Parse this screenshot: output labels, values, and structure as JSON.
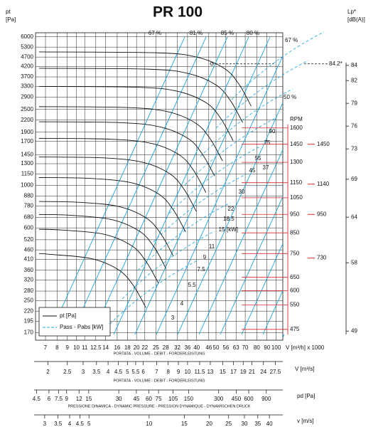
{
  "chart_data": {
    "type": "fan-curve",
    "title": "PR 100",
    "y_label": [
      "pt",
      "[Pa]"
    ],
    "log_x": true,
    "log_y": true,
    "grid": true,
    "ylim": [
      155,
      6300
    ],
    "yticks": [
      6000,
      5300,
      4700,
      4200,
      3700,
      3300,
      2900,
      2500,
      2200,
      1900,
      1700,
      1450,
      1300,
      1150,
      1000,
      880,
      780,
      680,
      600,
      520,
      460,
      410,
      360,
      320,
      280,
      250,
      220,
      195,
      170
    ],
    "xlim": [
      6.24,
      108
    ],
    "xticks": [
      7,
      8,
      9,
      10,
      11,
      12.5,
      14,
      16,
      18,
      20,
      22,
      25,
      28,
      32,
      36,
      40,
      46,
      50,
      56,
      63,
      70,
      80,
      90,
      100
    ],
    "x_unit": "V [m³/h] x 1000",
    "x_caption": "PORTATA - VOLUME - DEBIT - FORDERLEISTUNG",
    "flow_m3s": {
      "lim": [
        1.733,
        30
      ],
      "ticks": [
        2,
        2.5,
        3,
        3.5,
        4,
        4.5,
        5,
        5.5,
        6,
        7,
        8,
        9,
        10,
        11.5,
        13,
        15,
        17,
        19,
        21,
        24,
        27.5
      ],
      "label": "V [m³/s]",
      "caption": "PORTATA - VOLUME - DEBIT - FORDERLEISTUNG"
    },
    "pd": {
      "lim": [
        4.4,
        1317
      ],
      "ticks": [
        4.5,
        6,
        7.5,
        9,
        12,
        15,
        30,
        45,
        60,
        75,
        105,
        150,
        300,
        450,
        600,
        900
      ],
      "label": "pd [Pa]",
      "caption": "PRESSIONE DINAMICA - DYNAMIC PRESSURE - PRESSION DYNAMIQUE - DYNAMISCHEN DRUCK"
    },
    "velocity": {
      "lim": [
        2.7,
        46.7
      ],
      "ticks": [
        3,
        3.5,
        4,
        4.5,
        5,
        10,
        15,
        20,
        25,
        30,
        35,
        40
      ],
      "label": "v [m/s]"
    },
    "rpm": {
      "label": "RPM",
      "lim": [
        445,
        2840
      ],
      "ticks": [
        1600,
        1450,
        1300,
        1150,
        1050,
        950,
        850,
        750,
        650,
        600,
        550,
        475
      ],
      "markers": [
        1450,
        1140,
        950,
        730
      ],
      "color": "#d8262c"
    },
    "lp": {
      "label": [
        "Lp*",
        "[dB(A)]"
      ],
      "lim": [
        47.8,
        88.3
      ],
      "ticks": [
        84,
        82,
        79,
        76,
        73,
        69,
        64,
        58,
        49
      ],
      "point": {
        "value": 84.2,
        "label": "84.2*"
      }
    },
    "efficiency_labels": [
      "67 %",
      "81 %",
      "85 %",
      "80 %",
      "67 %",
      "50 %"
    ],
    "power_labels": [
      3,
      4,
      5.5,
      7.5,
      9,
      11,
      15,
      18.5,
      22,
      30,
      37,
      45,
      55,
      75,
      90
    ],
    "power_unit": "[kW]",
    "legend": [
      {
        "name": "pt [Pa]",
        "style": "solid"
      },
      {
        "name": "Pass - Pabs [kW]",
        "style": "dashed"
      }
    ],
    "curve_color": "#111111",
    "line_color": "#1ba5dc",
    "series": [
      {
        "x": [
          6.5,
          25,
          40,
          55,
          65,
          75
        ],
        "values": [
          5000,
          4950,
          4700,
          4100,
          3400,
          2600
        ]
      },
      {
        "x": [
          6.5,
          22.7,
          36.2,
          49.8,
          58.9,
          68
        ],
        "values": [
          4105,
          4064,
          3859,
          3366,
          2791,
          2135
        ]
      },
      {
        "x": [
          6.5,
          20.3,
          32.5,
          44.7,
          52.8,
          60.9
        ],
        "values": [
          3300,
          3267,
          3102,
          2706,
          2244,
          1716
        ]
      },
      {
        "x": [
          6.5,
          18,
          28.8,
          39.5,
          46.7,
          53.9
        ],
        "values": [
          2585,
          2559,
          2430,
          2120,
          1758,
          1344
        ]
      },
      {
        "x": [
          6.5,
          16.4,
          26.2,
          36.1,
          42.6,
          49.2
        ],
        "values": [
          2155,
          2133,
          2026,
          1767,
          1465,
          1121
        ]
      },
      {
        "x": [
          6.5,
          14.8,
          23.8,
          32.7,
          38.6,
          44.5
        ],
        "values": [
          1765,
          1747,
          1659,
          1447,
          1200,
          918
        ]
      },
      {
        "x": [
          6.5,
          13.3,
          21.3,
          29.2,
          34.5,
          39.8
        ],
        "values": [
          1410,
          1396,
          1325,
          1156,
          959,
          733
        ]
      },
      {
        "x": [
          6.5,
          11.7,
          18.8,
          25.8,
          30.5,
          35.2
        ],
        "values": [
          1100,
          1089,
          1034,
          902,
          748,
          572
        ]
      },
      {
        "x": [
          6.5,
          10.2,
          16.3,
          22.3,
          26.4,
          30.5
        ],
        "values": [
          825,
          817,
          776,
          677,
          561,
          429
        ]
      },
      {
        "x": [
          6.5,
          9.4,
          15,
          20.6,
          24.4,
          28.1
        ],
        "values": [
          705,
          698,
          663,
          578,
          479,
          367
        ]
      },
      {
        "x": [
          6.5,
          8.6,
          13.8,
          18.9,
          22.3,
          25.8
        ],
        "values": [
          590,
          584,
          555,
          484,
          401,
          307
        ]
      },
      {
        "x": [
          6.5,
          7.4,
          11.9,
          16.3,
          19.3,
          22.3
        ],
        "values": [
          440,
          436,
          414,
          361,
          299,
          229
        ]
      }
    ]
  }
}
